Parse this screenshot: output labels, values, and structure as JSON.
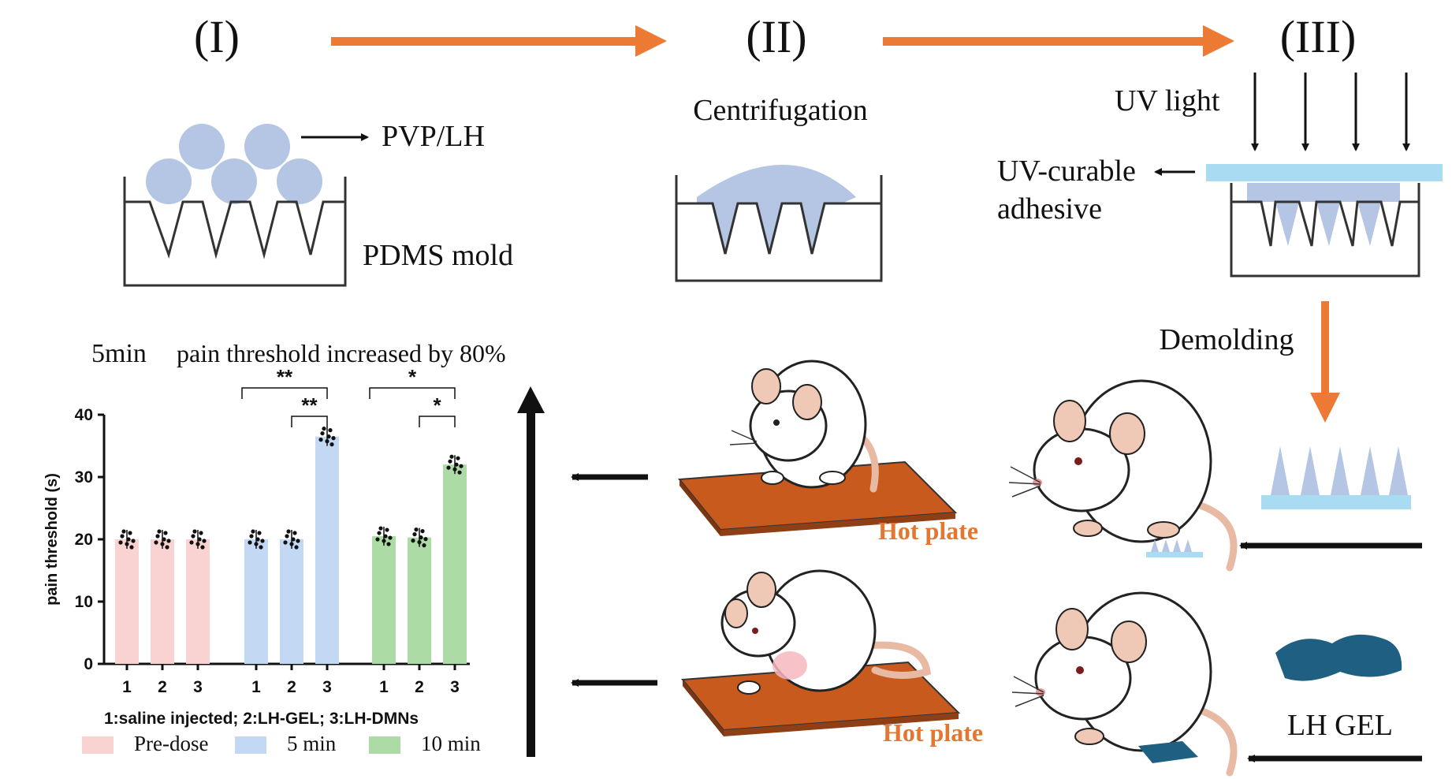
{
  "steps": {
    "step1": "(I)",
    "step2": "(II)",
    "step3": "(III)"
  },
  "labels": {
    "pvp_lh": "PVP/LH",
    "pdms_mold": "PDMS mold",
    "centrifugation": "Centrifugation",
    "uv_light": "UV light",
    "uv_curable": "UV-curable",
    "adhesive": "adhesive",
    "demolding": "Demolding",
    "hot_plate_top": "Hot plate",
    "hot_plate_bottom": "Hot plate",
    "lh_gel": "LH GEL"
  },
  "headline": {
    "time": "5min",
    "text": "pain threshold increased by 80%"
  },
  "colors": {
    "arrow_orange": "#ec7a34",
    "particle_blue": "#b4c6e4",
    "uv_band": "#a9dcf2",
    "hot_plate": "#c85a1e",
    "hot_label": "#e5762f",
    "gel_teal": "#1f5f82",
    "predose": "#f9d3d2",
    "five_min": "#c3d9f3",
    "ten_min": "#acdba6"
  },
  "chart_data": {
    "type": "bar",
    "ylabel": "pain threshold (s)",
    "ylim": [
      0,
      40
    ],
    "yticks": [
      "0",
      "10",
      "20",
      "30",
      "40"
    ],
    "groups": [
      {
        "name": "Pre-dose",
        "x_labels": [
          "1",
          "2",
          "3"
        ],
        "values": [
          20,
          20,
          20
        ],
        "color": "#f9d3d2"
      },
      {
        "name": "5 min",
        "x_labels": [
          "1",
          "2",
          "3"
        ],
        "values": [
          20,
          20,
          36.5
        ],
        "color": "#c3d9f3"
      },
      {
        "name": "10 min",
        "x_labels": [
          "1",
          "2",
          "3"
        ],
        "values": [
          20.5,
          20.3,
          32
        ],
        "color": "#acdba6"
      }
    ],
    "significance": [
      {
        "group": "5 min",
        "from": "1",
        "to": "3",
        "label": "**"
      },
      {
        "group": "5 min",
        "from": "2",
        "to": "3",
        "label": "**"
      },
      {
        "group": "10 min",
        "from": "1",
        "to": "3",
        "label": "*"
      },
      {
        "group": "10 min",
        "from": "2",
        "to": "3",
        "label": "*"
      }
    ],
    "caption": "1:saline injected; 2:LH-GEL; 3:LH-DMNs",
    "legend": [
      "Pre-dose",
      "5 min",
      "10 min"
    ]
  }
}
